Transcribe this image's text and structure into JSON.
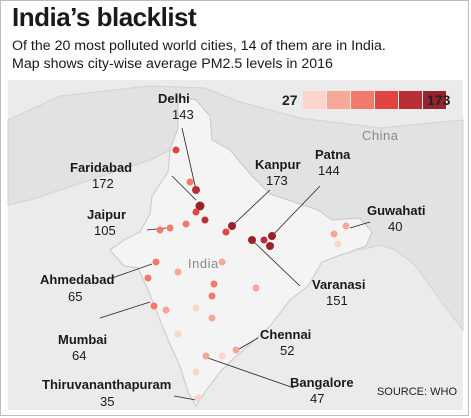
{
  "title": "India’s blacklist",
  "subtitle_lines": [
    "Of the 20 most polluted world cities, 14 of them are in India.",
    "Map shows city-wise average PM2.5 levels in 2016"
  ],
  "legend": {
    "min": "27",
    "max": "173",
    "colors": [
      "#fbd5cc",
      "#f6a796",
      "#ee7b6b",
      "#e0463f",
      "#b82f35",
      "#98232e"
    ]
  },
  "country_labels": {
    "china": "China",
    "india": "India"
  },
  "labeled_cities": [
    {
      "name": "Delhi",
      "value": "143"
    },
    {
      "name": "Faridabad",
      "value": "172"
    },
    {
      "name": "Kanpur",
      "value": "173"
    },
    {
      "name": "Patna",
      "value": "144"
    },
    {
      "name": "Jaipur",
      "value": "105"
    },
    {
      "name": "Guwahati",
      "value": "40"
    },
    {
      "name": "Ahmedabad",
      "value": "65"
    },
    {
      "name": "Varanasi",
      "value": "151"
    },
    {
      "name": "Mumbai",
      "value": "64"
    },
    {
      "name": "Chennai",
      "value": "52"
    },
    {
      "name": "Thiruvananthapuram",
      "value": "35"
    },
    {
      "name": "Bangalore",
      "value": "47"
    }
  ],
  "source": "SOURCE: WHO"
}
